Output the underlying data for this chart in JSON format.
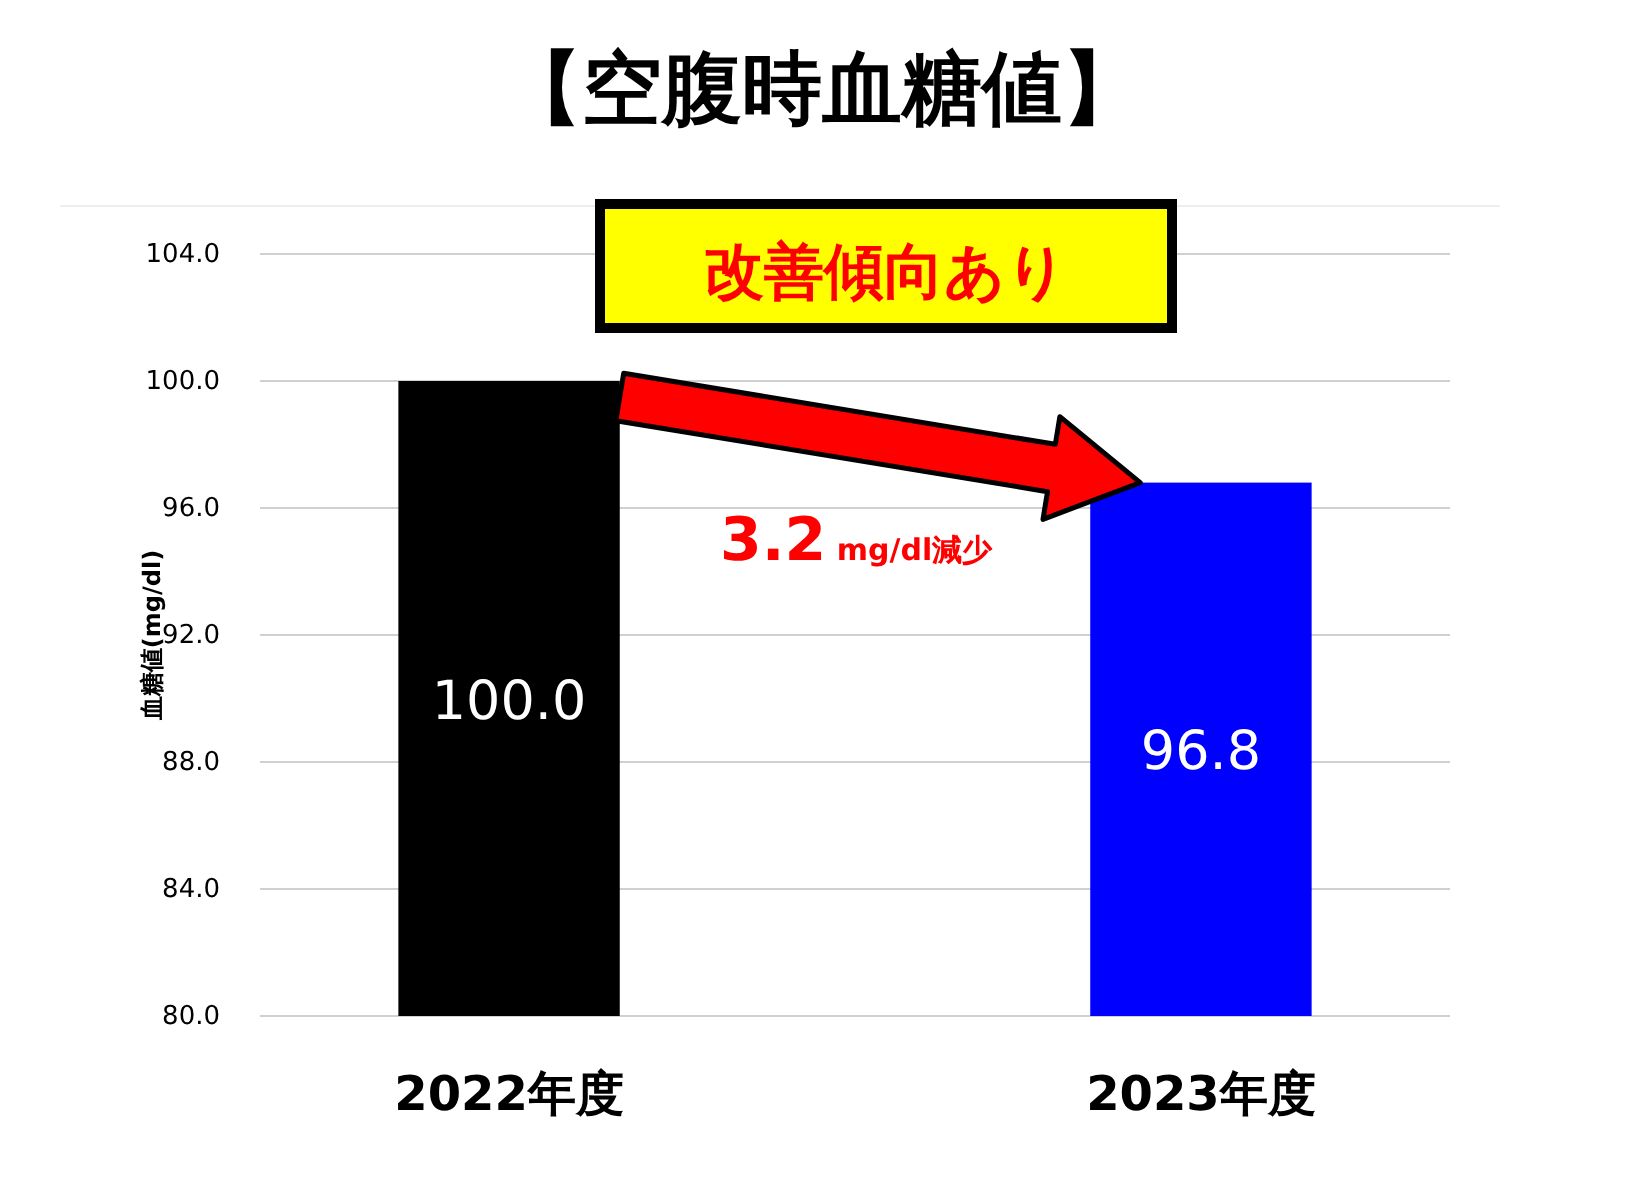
{
  "chart_data": {
    "type": "bar",
    "title": "【空腹時血糖値】",
    "ylabel": "血糖値(mg/dl)",
    "categories": [
      "2022年度",
      "2023年度"
    ],
    "values": [
      100.0,
      96.8
    ],
    "value_labels": [
      "100.0",
      "96.8"
    ],
    "colors": [
      "#000000",
      "#0000ff"
    ],
    "ylim": [
      80,
      104
    ],
    "yticks": [
      {
        "value": 80,
        "label": "80.0"
      },
      {
        "value": 84,
        "label": "84.0"
      },
      {
        "value": 88,
        "label": "88.0"
      },
      {
        "value": 92,
        "label": "92.0"
      },
      {
        "value": 96,
        "label": "96.0"
      },
      {
        "value": 100,
        "label": "100.0"
      },
      {
        "value": 104,
        "label": "104.0"
      }
    ],
    "grid": "y",
    "annotations": [
      "改善傾向あり",
      "3.2 mg/dl減少"
    ]
  }
}
